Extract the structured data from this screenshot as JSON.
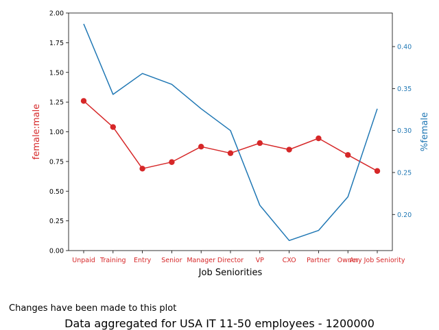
{
  "chart_data": {
    "type": "line",
    "categories": [
      "Unpaid",
      "Training",
      "Entry",
      "Senior",
      "Manager",
      "Director",
      "VP",
      "CXO",
      "Partner",
      "Owner",
      "Any Job Seniority"
    ],
    "xlabel": "Job Seniorities",
    "series": [
      {
        "name": "female:male",
        "axis": "left",
        "color": "#d62728",
        "marker": "circle",
        "values": [
          1.26,
          1.04,
          0.69,
          0.745,
          0.875,
          0.82,
          0.905,
          0.85,
          0.945,
          0.805,
          0.67
        ]
      },
      {
        "name": "%female",
        "axis": "right",
        "color": "#1f77b4",
        "marker": "none",
        "values": [
          0.427,
          0.343,
          0.368,
          0.355,
          0.326,
          0.3,
          0.211,
          0.169,
          0.181,
          0.221,
          0.326
        ]
      }
    ],
    "y_left": {
      "label": "female:male",
      "range": [
        0,
        2.0
      ],
      "ticks": [
        "0.00",
        "0.25",
        "0.50",
        "0.75",
        "1.00",
        "1.25",
        "1.50",
        "1.75",
        "2.00"
      ],
      "color": "#d62728"
    },
    "y_right": {
      "label": "%⁠female",
      "range": [
        0.157,
        0.44
      ],
      "ticks": [
        "0.20",
        "0.25",
        "0.30",
        "0.35",
        "0.40"
      ],
      "color": "#1f77b4"
    },
    "grid": false,
    "legend": "none"
  },
  "note": "Changes have been made to this plot",
  "caption": "Data aggregated for USA IT 11-50 employees - 1200000"
}
